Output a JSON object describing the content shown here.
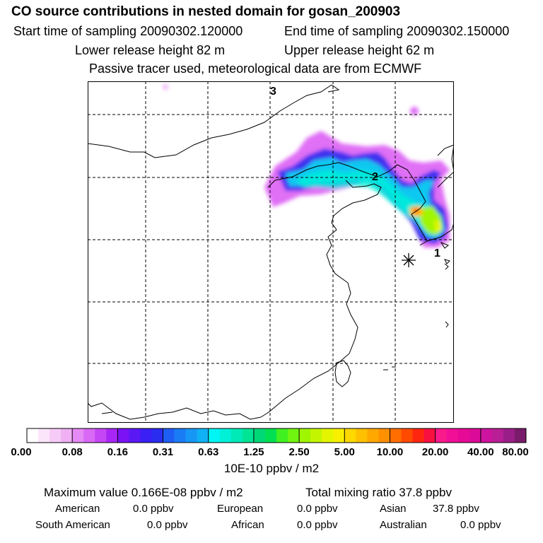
{
  "header": {
    "title": "CO  source contributions in nested domain for gosan_200903",
    "start_label": "Start time of sampling 20090302.120000",
    "end_label": "End time of sampling 20090302.150000",
    "lower_label": "Lower release height   82 m",
    "upper_label": "Upper release height   62 m",
    "note": "Passive tracer used, meteorological data are from ECMWF"
  },
  "map": {
    "markers": [
      {
        "id": "1",
        "label": "1"
      },
      {
        "id": "2",
        "label": "2"
      },
      {
        "id": "3",
        "label": "3"
      }
    ],
    "receptor_symbol": "asterisk"
  },
  "colorbar": {
    "ticks": [
      "0.00",
      "0.08",
      "0.16",
      "0.31",
      "0.63",
      "1.25",
      "2.50",
      "5.00",
      "10.00",
      "20.00",
      "40.00",
      "80.00"
    ],
    "unit": "10E-10 ppbv / m2",
    "colors": [
      [
        "#ffffff",
        "#fbe5fb",
        "#f6cbf7",
        "#f0b0f3"
      ],
      [
        "#e68af5",
        "#d968f5",
        "#c546f5",
        "#a826f5"
      ],
      [
        "#7a12f5",
        "#5a18f5",
        "#3a20f5",
        "#2a2cf0"
      ],
      [
        "#1f5ef5",
        "#1a7cf5",
        "#1697f5",
        "#10b2f5"
      ],
      [
        "#00f5f5",
        "#00f0d8",
        "#00eab8",
        "#00e496"
      ],
      [
        "#00d878",
        "#00e050",
        "#40f020",
        "#70f510"
      ],
      [
        "#a0f500",
        "#c4f500",
        "#e4f500",
        "#f8f000"
      ],
      [
        "#ffd800",
        "#ffc000",
        "#ffa800",
        "#ff9000"
      ],
      [
        "#ff6e00",
        "#ff4a00",
        "#ff2610",
        "#f81040"
      ],
      [
        "#fa1a8c",
        "#f00f96",
        "#e60a96",
        "#dc0a98"
      ],
      [
        "#cc149e",
        "#b81e96",
        "#9a1e88",
        "#7a1a6a"
      ]
    ]
  },
  "stats": {
    "maximum": "Maximum value  0.166E-08 ppbv / m2",
    "total": "Total mixing ratio       37.8 ppbv"
  },
  "contributions": [
    {
      "name": "American",
      "value": "0.0 ppbv"
    },
    {
      "name": "European",
      "value": "0.0 ppbv"
    },
    {
      "name": "Asian",
      "value": "37.8 ppbv"
    },
    {
      "name": "South American",
      "value": "0.0 ppbv"
    },
    {
      "name": "African",
      "value": "0.0 ppbv"
    },
    {
      "name": "Australian",
      "value": "0.0 ppbv"
    }
  ]
}
